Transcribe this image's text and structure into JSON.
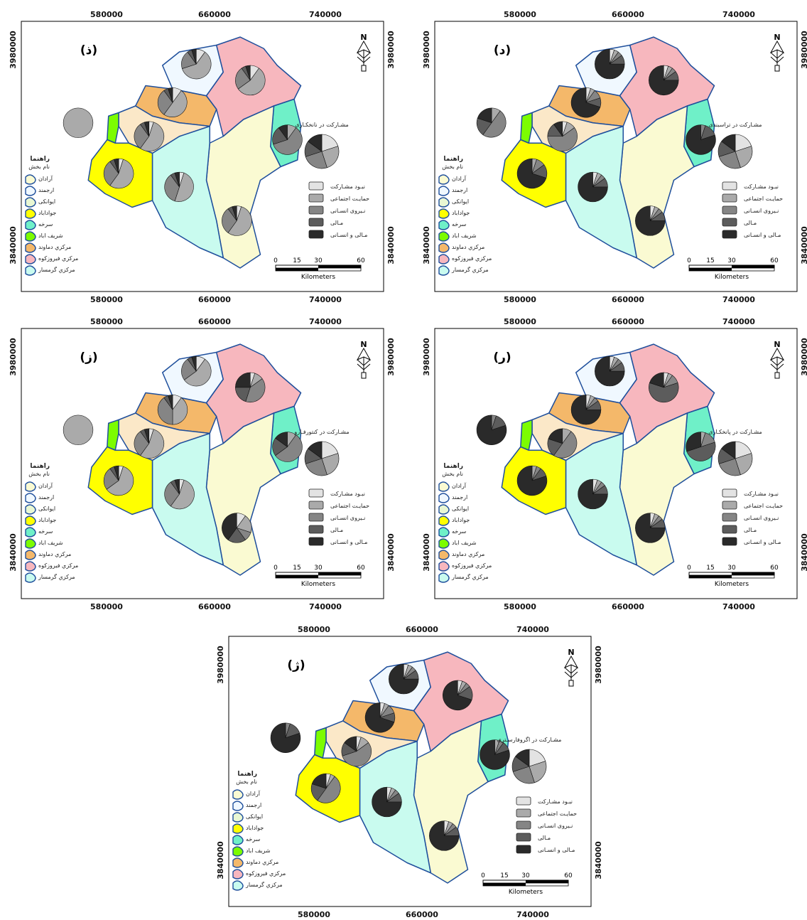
{
  "axes": {
    "x_ticks": [
      "580000",
      "660000",
      "740000"
    ],
    "y_ticks": [
      "3980000",
      "3840000"
    ]
  },
  "legend": {
    "title": "راهنما",
    "subtitle": "نام بخش",
    "districts": [
      {
        "name": "آرادان",
        "color": "#fafad2"
      },
      {
        "name": "ارجمند",
        "color": "#f0f8ff"
      },
      {
        "name": "ایوانکی",
        "color": "#e9f7d3"
      },
      {
        "name": "جواداباد",
        "color": "#ffff00"
      },
      {
        "name": "سرخه",
        "color": "#6ff0c8"
      },
      {
        "name": "شریف اباد",
        "color": "#7cfc00"
      },
      {
        "name": "مرکزي دماوند",
        "color": "#f4b86a"
      },
      {
        "name": "مرکزي فيروزكوه",
        "color": "#f7b7be"
      },
      {
        "name": "مرکزي گرمسار",
        "color": "#c9fbef"
      }
    ]
  },
  "participation_categories": [
    {
      "label": "نبـود مشـارکت",
      "color": "#e3e3e3"
    },
    {
      "label": "حمایـت اجتماعی",
      "color": "#aaaaaa"
    },
    {
      "label": "نـیروی انسـانی",
      "color": "#858585"
    },
    {
      "label": "مـالی",
      "color": "#5c5c5c"
    },
    {
      "label": "مـالی و انسـانی",
      "color": "#2a2a2a"
    }
  ],
  "scale": {
    "ticks": [
      "0",
      "15",
      "30",
      "60"
    ],
    "unit": "Kilometers"
  },
  "north_label": "N",
  "panels": [
    {
      "label": "(ذ)",
      "pie_title": "مشـارکت در نانخکـاری",
      "overall_pie": [
        20,
        25,
        25,
        15,
        15
      ]
    },
    {
      "label": "(د)",
      "pie_title": "مشـارکت در تراسبندی",
      "overall_pie": [
        20,
        25,
        25,
        15,
        15
      ]
    },
    {
      "label": "(ز)",
      "pie_title": "مشـارکت در کنتورفـارو",
      "overall_pie": [
        20,
        25,
        25,
        15,
        15
      ]
    },
    {
      "label": "(ر)",
      "pie_title": "مشـارکت در پانخکـاری",
      "overall_pie": [
        20,
        25,
        25,
        15,
        15
      ]
    },
    {
      "label": "(ژ)",
      "pie_title": "مشـارکت در اگروفارسـتری",
      "overall_pie": [
        20,
        25,
        25,
        15,
        15
      ]
    }
  ]
}
